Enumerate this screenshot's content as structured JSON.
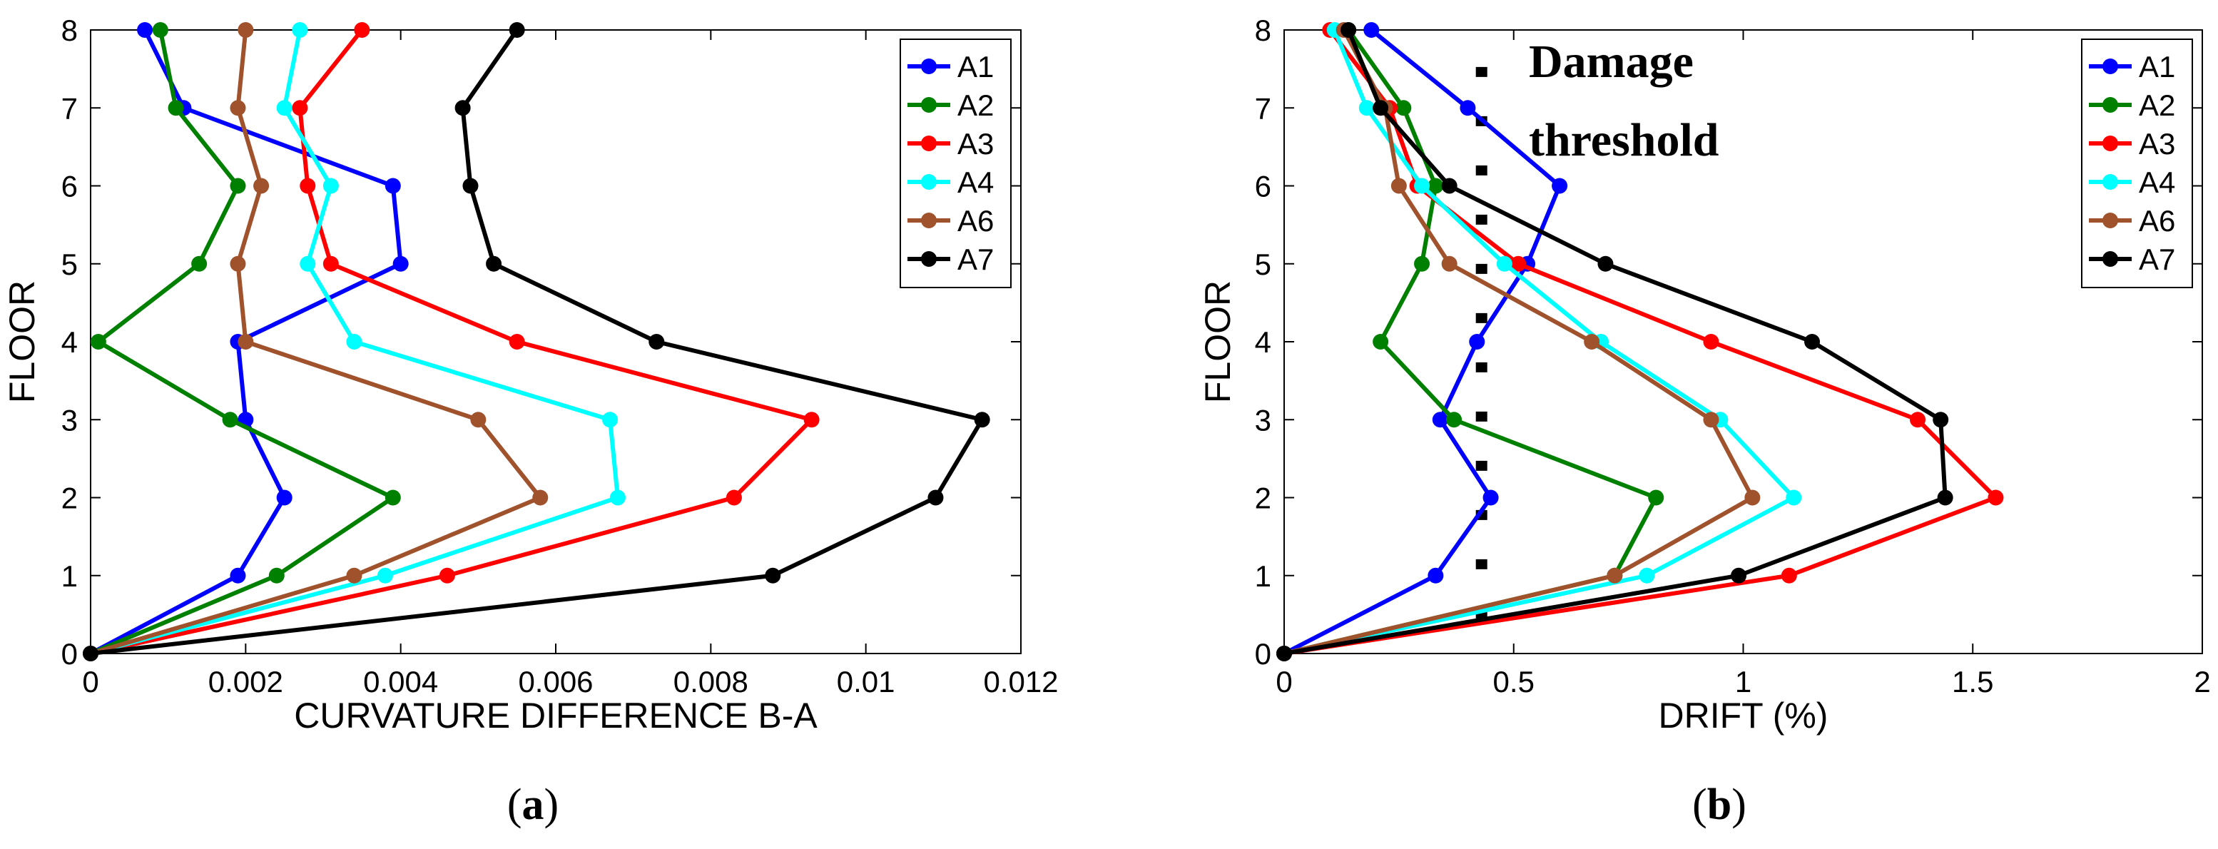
{
  "chart_data": [
    {
      "id": "a",
      "type": "line",
      "orientation": "horizontal-profile",
      "panel_label_open": "(",
      "panel_label_letter": "a",
      "panel_label_close": ")",
      "xlabel": "CURVATURE DIFFERENCE B-A",
      "ylabel": "FLOOR",
      "xlim": [
        0,
        0.012
      ],
      "ylim": [
        0,
        8
      ],
      "xticks": [
        0,
        0.002,
        0.004,
        0.006,
        0.008,
        0.01,
        0.012
      ],
      "xtick_labels": [
        "0",
        "0.002",
        "0.004",
        "0.006",
        "0.008",
        "0.01",
        "0.012"
      ],
      "yticks": [
        0,
        1,
        2,
        3,
        4,
        5,
        6,
        7,
        8
      ],
      "ytick_labels": [
        "0",
        "1",
        "2",
        "3",
        "4",
        "5",
        "6",
        "7",
        "8"
      ],
      "legend_position": "top-right",
      "y": [
        0,
        1,
        2,
        3,
        4,
        5,
        6,
        7,
        8
      ],
      "series": [
        {
          "name": "A1",
          "color": "#0000ff",
          "values": [
            0,
            0.0019,
            0.0025,
            0.002,
            0.0019,
            0.004,
            0.0039,
            0.0012,
            0.0007
          ]
        },
        {
          "name": "A2",
          "color": "#008000",
          "values": [
            0,
            0.0024,
            0.0039,
            0.0018,
            0.0001,
            0.0014,
            0.0019,
            0.0011,
            0.0009
          ]
        },
        {
          "name": "A3",
          "color": "#ff0000",
          "values": [
            0,
            0.0046,
            0.0083,
            0.0093,
            0.0055,
            0.0031,
            0.0028,
            0.0027,
            0.0035
          ]
        },
        {
          "name": "A4",
          "color": "#00ffff",
          "values": [
            0,
            0.0038,
            0.0068,
            0.0067,
            0.0034,
            0.0028,
            0.0031,
            0.0025,
            0.0027
          ]
        },
        {
          "name": "A6",
          "color": "#a0522d",
          "values": [
            0,
            0.0034,
            0.0058,
            0.005,
            0.002,
            0.0019,
            0.0022,
            0.0019,
            0.002
          ]
        },
        {
          "name": "A7",
          "color": "#000000",
          "values": [
            0,
            0.0088,
            0.0109,
            0.0115,
            0.0073,
            0.0052,
            0.0049,
            0.0048,
            0.0055
          ]
        }
      ]
    },
    {
      "id": "b",
      "type": "line",
      "orientation": "horizontal-profile",
      "panel_label_open": "(",
      "panel_label_letter": "b",
      "panel_label_close": ")",
      "xlabel": "DRIFT (%)",
      "ylabel": "FLOOR",
      "xlim": [
        0,
        2
      ],
      "ylim": [
        0,
        8
      ],
      "xticks": [
        0,
        0.5,
        1,
        1.5,
        2
      ],
      "xtick_labels": [
        "0",
        "0.5",
        "1",
        "1.5",
        "2"
      ],
      "yticks": [
        0,
        1,
        2,
        3,
        4,
        5,
        6,
        7,
        8
      ],
      "ytick_labels": [
        "0",
        "1",
        "2",
        "3",
        "4",
        "5",
        "6",
        "7",
        "8"
      ],
      "legend_position": "top-right",
      "y": [
        0,
        1,
        2,
        3,
        4,
        5,
        6,
        7,
        8
      ],
      "series": [
        {
          "name": "A1",
          "color": "#0000ff",
          "values": [
            0,
            0.33,
            0.45,
            0.34,
            0.42,
            0.53,
            0.6,
            0.4,
            0.19
          ]
        },
        {
          "name": "A2",
          "color": "#008000",
          "values": [
            0,
            0.72,
            0.81,
            0.37,
            0.21,
            0.3,
            0.33,
            0.26,
            0.14
          ]
        },
        {
          "name": "A3",
          "color": "#ff0000",
          "values": [
            0,
            1.1,
            1.55,
            1.38,
            0.93,
            0.51,
            0.29,
            0.23,
            0.1
          ]
        },
        {
          "name": "A4",
          "color": "#00ffff",
          "values": [
            0,
            0.79,
            1.11,
            0.95,
            0.69,
            0.48,
            0.3,
            0.18,
            0.11
          ]
        },
        {
          "name": "A6",
          "color": "#a0522d",
          "values": [
            0,
            0.72,
            1.02,
            0.93,
            0.67,
            0.36,
            0.25,
            0.22,
            0.13
          ]
        },
        {
          "name": "A7",
          "color": "#000000",
          "values": [
            0,
            0.99,
            1.44,
            1.43,
            1.15,
            0.7,
            0.36,
            0.21,
            0.14
          ]
        }
      ],
      "threshold": {
        "label_line1": "Damage",
        "label_line2": "threshold",
        "points": [
          [
            0.43,
            0.45
          ],
          [
            0.43,
            8
          ]
        ]
      }
    }
  ]
}
